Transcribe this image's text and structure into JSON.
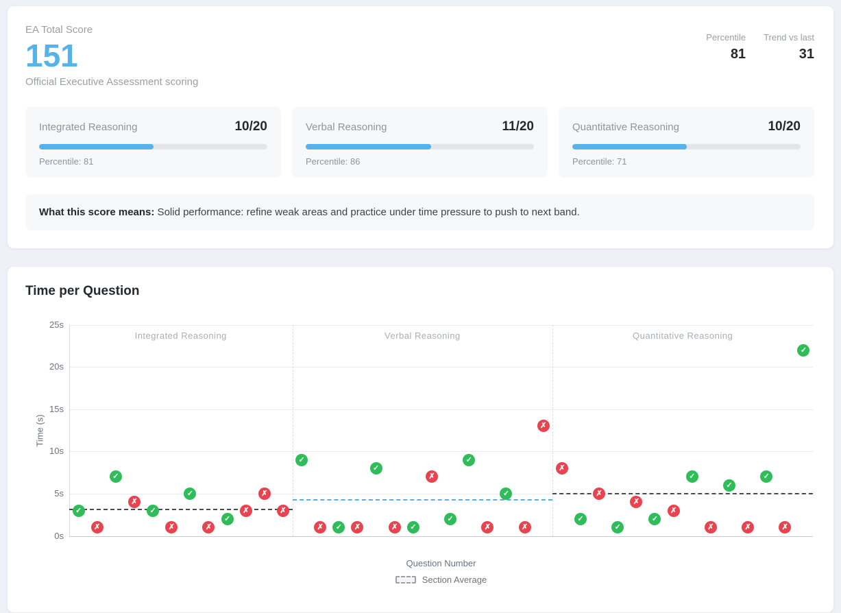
{
  "scorecard": {
    "label": "EA Total Score",
    "score": "151",
    "subtitle": "Official Executive Assessment scoring",
    "stats": [
      {
        "label": "Percentile",
        "value": "81"
      },
      {
        "label": "Trend vs last",
        "value": "31"
      }
    ],
    "sections": [
      {
        "name": "Integrated Reasoning",
        "score": "10/20",
        "percent": 50,
        "percentile_label": "Percentile: 81"
      },
      {
        "name": "Verbal Reasoning",
        "score": "11/20",
        "percent": 55,
        "percentile_label": "Percentile: 86"
      },
      {
        "name": "Quantitative Reasoning",
        "score": "10/20",
        "percent": 50,
        "percentile_label": "Percentile: 71"
      }
    ],
    "meaning": {
      "prefix": "What this score means:",
      "text": " Solid performance: refine weak areas and practice under time pressure to push to next band."
    }
  },
  "chart_card": {
    "title": "Time per Question"
  },
  "chart_data": {
    "type": "scatter",
    "title": "Time per Question",
    "xlabel": "Question Number",
    "ylabel": "Time (s)",
    "ylim": [
      0,
      25
    ],
    "yticks": [
      0,
      5,
      10,
      15,
      20,
      25
    ],
    "ytick_suffix": "s",
    "legend": {
      "label": "Section Average",
      "swatch_style": "dashed"
    },
    "marker_colors": {
      "correct": "#2ebd59",
      "incorrect": "#e9434f"
    },
    "sections": [
      {
        "name": "Integrated Reasoning",
        "average": 3.17,
        "average_color": "#444a4f",
        "points": [
          {
            "t": 3,
            "correct": true
          },
          {
            "t": 1,
            "correct": false
          },
          {
            "t": 7,
            "correct": true
          },
          {
            "t": 4,
            "correct": false
          },
          {
            "t": 3,
            "correct": true
          },
          {
            "t": 1,
            "correct": false
          },
          {
            "t": 5,
            "correct": true
          },
          {
            "t": 1,
            "correct": false
          },
          {
            "t": 2,
            "correct": true
          },
          {
            "t": 3,
            "correct": false
          },
          {
            "t": 5,
            "correct": false
          },
          {
            "t": 3,
            "correct": false
          }
        ]
      },
      {
        "name": "Verbal Reasoning",
        "average": 4.29,
        "average_color": "#56aee8",
        "points": [
          {
            "t": 9,
            "correct": true
          },
          {
            "t": 1,
            "correct": false
          },
          {
            "t": 1,
            "correct": true
          },
          {
            "t": 1,
            "correct": false
          },
          {
            "t": 8,
            "correct": true
          },
          {
            "t": 1,
            "correct": false
          },
          {
            "t": 1,
            "correct": true
          },
          {
            "t": 7,
            "correct": false
          },
          {
            "t": 2,
            "correct": true
          },
          {
            "t": 9,
            "correct": true
          },
          {
            "t": 1,
            "correct": false
          },
          {
            "t": 5,
            "correct": true
          },
          {
            "t": 1,
            "correct": false
          },
          {
            "t": 13,
            "correct": false
          }
        ]
      },
      {
        "name": "Quantitative Reasoning",
        "average": 5.0,
        "average_color": "#444a4f",
        "points": [
          {
            "t": 8,
            "correct": false
          },
          {
            "t": 2,
            "correct": true
          },
          {
            "t": 5,
            "correct": false
          },
          {
            "t": 1,
            "correct": true
          },
          {
            "t": 4,
            "correct": false
          },
          {
            "t": 2,
            "correct": true
          },
          {
            "t": 3,
            "correct": false
          },
          {
            "t": 7,
            "correct": true
          },
          {
            "t": 1,
            "correct": false
          },
          {
            "t": 6,
            "correct": true
          },
          {
            "t": 1,
            "correct": false
          },
          {
            "t": 7,
            "correct": true
          },
          {
            "t": 1,
            "correct": false
          },
          {
            "t": 22,
            "correct": true
          }
        ]
      }
    ]
  }
}
